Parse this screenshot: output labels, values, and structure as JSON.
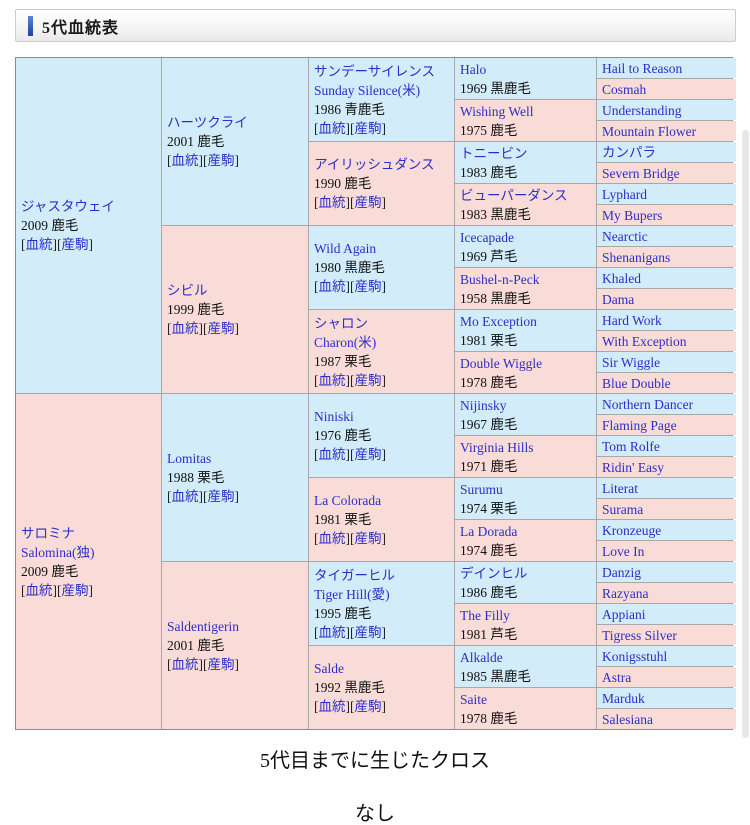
{
  "header": {
    "title": "5代血統表"
  },
  "labels": {
    "bracket_open": "[",
    "bracket_close": "]",
    "blood": "血統",
    "offspring": "産駒"
  },
  "colors": {
    "sire_cell_bg": "#d2ecfa",
    "dam_cell_bg": "#f9dcd8",
    "link_blue": "#2d2dc9",
    "header_accent_blue": "#1f3f9e"
  },
  "captions": {
    "cross_title": "5代目までに生じたクロス",
    "cross_value": "なし"
  },
  "pedigree": {
    "rows_total": 32,
    "columns": [
      {
        "generation": 1,
        "row_span": 16,
        "cells": [
          {
            "name_lines": [
              "ジャスタウェイ"
            ],
            "detail": "2009 鹿毛",
            "has_links": true,
            "bg": "blue"
          },
          {
            "name_lines": [
              "サロミナ",
              "Salomina(独)"
            ],
            "detail": "2009 鹿毛",
            "has_links": true,
            "bg": "pink"
          }
        ]
      },
      {
        "generation": 2,
        "row_span": 8,
        "cells": [
          {
            "name_lines": [
              "ハーツクライ"
            ],
            "detail": "2001 鹿毛",
            "has_links": true,
            "bg": "blue"
          },
          {
            "name_lines": [
              "シビル"
            ],
            "detail": "1999 鹿毛",
            "has_links": true,
            "bg": "pink"
          },
          {
            "name_lines": [
              "Lomitas"
            ],
            "detail": "1988 栗毛",
            "has_links": true,
            "bg": "blue"
          },
          {
            "name_lines": [
              "Saldentigerin"
            ],
            "detail": "2001 鹿毛",
            "has_links": true,
            "bg": "pink"
          }
        ]
      },
      {
        "generation": 3,
        "row_span": 4,
        "cells": [
          {
            "name_lines": [
              "サンデーサイレンス",
              "Sunday Silence(米)"
            ],
            "detail": "1986 青鹿毛",
            "has_links": true,
            "bg": "blue"
          },
          {
            "name_lines": [
              "アイリッシュダンス"
            ],
            "detail": "1990 鹿毛",
            "has_links": true,
            "bg": "pink"
          },
          {
            "name_lines": [
              "Wild Again"
            ],
            "detail": "1980 黒鹿毛",
            "has_links": true,
            "bg": "blue"
          },
          {
            "name_lines": [
              "シャロン",
              "Charon(米)"
            ],
            "detail": "1987 栗毛",
            "has_links": true,
            "bg": "pink"
          },
          {
            "name_lines": [
              "Niniski"
            ],
            "detail": "1976 鹿毛",
            "has_links": true,
            "bg": "blue"
          },
          {
            "name_lines": [
              "La Colorada"
            ],
            "detail": "1981 栗毛",
            "has_links": true,
            "bg": "pink"
          },
          {
            "name_lines": [
              "タイガーヒル",
              "Tiger Hill(愛)"
            ],
            "detail": "1995 鹿毛",
            "has_links": true,
            "bg": "blue"
          },
          {
            "name_lines": [
              "Salde"
            ],
            "detail": "1992 黒鹿毛",
            "has_links": true,
            "bg": "pink"
          }
        ]
      },
      {
        "generation": 4,
        "row_span": 2,
        "cells": [
          {
            "name_lines": [
              "Halo"
            ],
            "detail": "1969 黒鹿毛",
            "has_links": false,
            "bg": "blue"
          },
          {
            "name_lines": [
              "Wishing Well"
            ],
            "detail": "1975 鹿毛",
            "has_links": false,
            "bg": "pink"
          },
          {
            "name_lines": [
              "トニービン"
            ],
            "detail": "1983 鹿毛",
            "has_links": false,
            "bg": "blue"
          },
          {
            "name_lines": [
              "ビューパーダンス"
            ],
            "detail": "1983 黒鹿毛",
            "has_links": false,
            "bg": "pink"
          },
          {
            "name_lines": [
              "Icecapade"
            ],
            "detail": "1969 芦毛",
            "has_links": false,
            "bg": "blue"
          },
          {
            "name_lines": [
              "Bushel-n-Peck"
            ],
            "detail": "1958 黒鹿毛",
            "has_links": false,
            "bg": "pink"
          },
          {
            "name_lines": [
              "Mo Exception"
            ],
            "detail": "1981 栗毛",
            "has_links": false,
            "bg": "blue"
          },
          {
            "name_lines": [
              "Double Wiggle"
            ],
            "detail": "1978 鹿毛",
            "has_links": false,
            "bg": "pink"
          },
          {
            "name_lines": [
              "Nijinsky"
            ],
            "detail": "1967 鹿毛",
            "has_links": false,
            "bg": "blue"
          },
          {
            "name_lines": [
              "Virginia Hills"
            ],
            "detail": "1971 鹿毛",
            "has_links": false,
            "bg": "pink"
          },
          {
            "name_lines": [
              "Surumu"
            ],
            "detail": "1974 栗毛",
            "has_links": false,
            "bg": "blue"
          },
          {
            "name_lines": [
              "La Dorada"
            ],
            "detail": "1974 鹿毛",
            "has_links": false,
            "bg": "pink"
          },
          {
            "name_lines": [
              "デインヒル"
            ],
            "detail": "1986 鹿毛",
            "has_links": false,
            "bg": "blue"
          },
          {
            "name_lines": [
              "The Filly"
            ],
            "detail": "1981 芦毛",
            "has_links": false,
            "bg": "pink"
          },
          {
            "name_lines": [
              "Alkalde"
            ],
            "detail": "1985 黒鹿毛",
            "has_links": false,
            "bg": "blue"
          },
          {
            "name_lines": [
              "Saite"
            ],
            "detail": "1978 鹿毛",
            "has_links": false,
            "bg": "pink"
          }
        ]
      },
      {
        "generation": 5,
        "row_span": 1,
        "cells": [
          {
            "name_lines": [
              "Hail to Reason"
            ],
            "detail": "",
            "has_links": false,
            "bg": "blue"
          },
          {
            "name_lines": [
              "Cosmah"
            ],
            "detail": "",
            "has_links": false,
            "bg": "pink"
          },
          {
            "name_lines": [
              "Understanding"
            ],
            "detail": "",
            "has_links": false,
            "bg": "blue"
          },
          {
            "name_lines": [
              "Mountain Flower"
            ],
            "detail": "",
            "has_links": false,
            "bg": "pink"
          },
          {
            "name_lines": [
              "カンパラ"
            ],
            "detail": "",
            "has_links": false,
            "bg": "blue"
          },
          {
            "name_lines": [
              "Severn Bridge"
            ],
            "detail": "",
            "has_links": false,
            "bg": "pink"
          },
          {
            "name_lines": [
              "Lyphard"
            ],
            "detail": "",
            "has_links": false,
            "bg": "blue"
          },
          {
            "name_lines": [
              "My Bupers"
            ],
            "detail": "",
            "has_links": false,
            "bg": "pink"
          },
          {
            "name_lines": [
              "Nearctic"
            ],
            "detail": "",
            "has_links": false,
            "bg": "blue"
          },
          {
            "name_lines": [
              "Shenanigans"
            ],
            "detail": "",
            "has_links": false,
            "bg": "pink"
          },
          {
            "name_lines": [
              "Khaled"
            ],
            "detail": "",
            "has_links": false,
            "bg": "blue"
          },
          {
            "name_lines": [
              "Dama"
            ],
            "detail": "",
            "has_links": false,
            "bg": "pink"
          },
          {
            "name_lines": [
              "Hard Work"
            ],
            "detail": "",
            "has_links": false,
            "bg": "blue"
          },
          {
            "name_lines": [
              "With Exception"
            ],
            "detail": "",
            "has_links": false,
            "bg": "pink"
          },
          {
            "name_lines": [
              "Sir Wiggle"
            ],
            "detail": "",
            "has_links": false,
            "bg": "blue"
          },
          {
            "name_lines": [
              "Blue Double"
            ],
            "detail": "",
            "has_links": false,
            "bg": "pink"
          },
          {
            "name_lines": [
              "Northern Dancer"
            ],
            "detail": "",
            "has_links": false,
            "bg": "blue"
          },
          {
            "name_lines": [
              "Flaming Page"
            ],
            "detail": "",
            "has_links": false,
            "bg": "pink"
          },
          {
            "name_lines": [
              "Tom Rolfe"
            ],
            "detail": "",
            "has_links": false,
            "bg": "blue"
          },
          {
            "name_lines": [
              "Ridin' Easy"
            ],
            "detail": "",
            "has_links": false,
            "bg": "pink"
          },
          {
            "name_lines": [
              "Literat"
            ],
            "detail": "",
            "has_links": false,
            "bg": "blue"
          },
          {
            "name_lines": [
              "Surama"
            ],
            "detail": "",
            "has_links": false,
            "bg": "pink"
          },
          {
            "name_lines": [
              "Kronzeuge"
            ],
            "detail": "",
            "has_links": false,
            "bg": "blue"
          },
          {
            "name_lines": [
              "Love In"
            ],
            "detail": "",
            "has_links": false,
            "bg": "pink"
          },
          {
            "name_lines": [
              "Danzig"
            ],
            "detail": "",
            "has_links": false,
            "bg": "blue"
          },
          {
            "name_lines": [
              "Razyana"
            ],
            "detail": "",
            "has_links": false,
            "bg": "pink"
          },
          {
            "name_lines": [
              "Appiani"
            ],
            "detail": "",
            "has_links": false,
            "bg": "blue"
          },
          {
            "name_lines": [
              "Tigress Silver"
            ],
            "detail": "",
            "has_links": false,
            "bg": "pink"
          },
          {
            "name_lines": [
              "Konigsstuhl"
            ],
            "detail": "",
            "has_links": false,
            "bg": "blue"
          },
          {
            "name_lines": [
              "Astra"
            ],
            "detail": "",
            "has_links": false,
            "bg": "pink"
          },
          {
            "name_lines": [
              "Marduk"
            ],
            "detail": "",
            "has_links": false,
            "bg": "blue"
          },
          {
            "name_lines": [
              "Salesiana"
            ],
            "detail": "",
            "has_links": false,
            "bg": "pink"
          }
        ]
      }
    ]
  }
}
